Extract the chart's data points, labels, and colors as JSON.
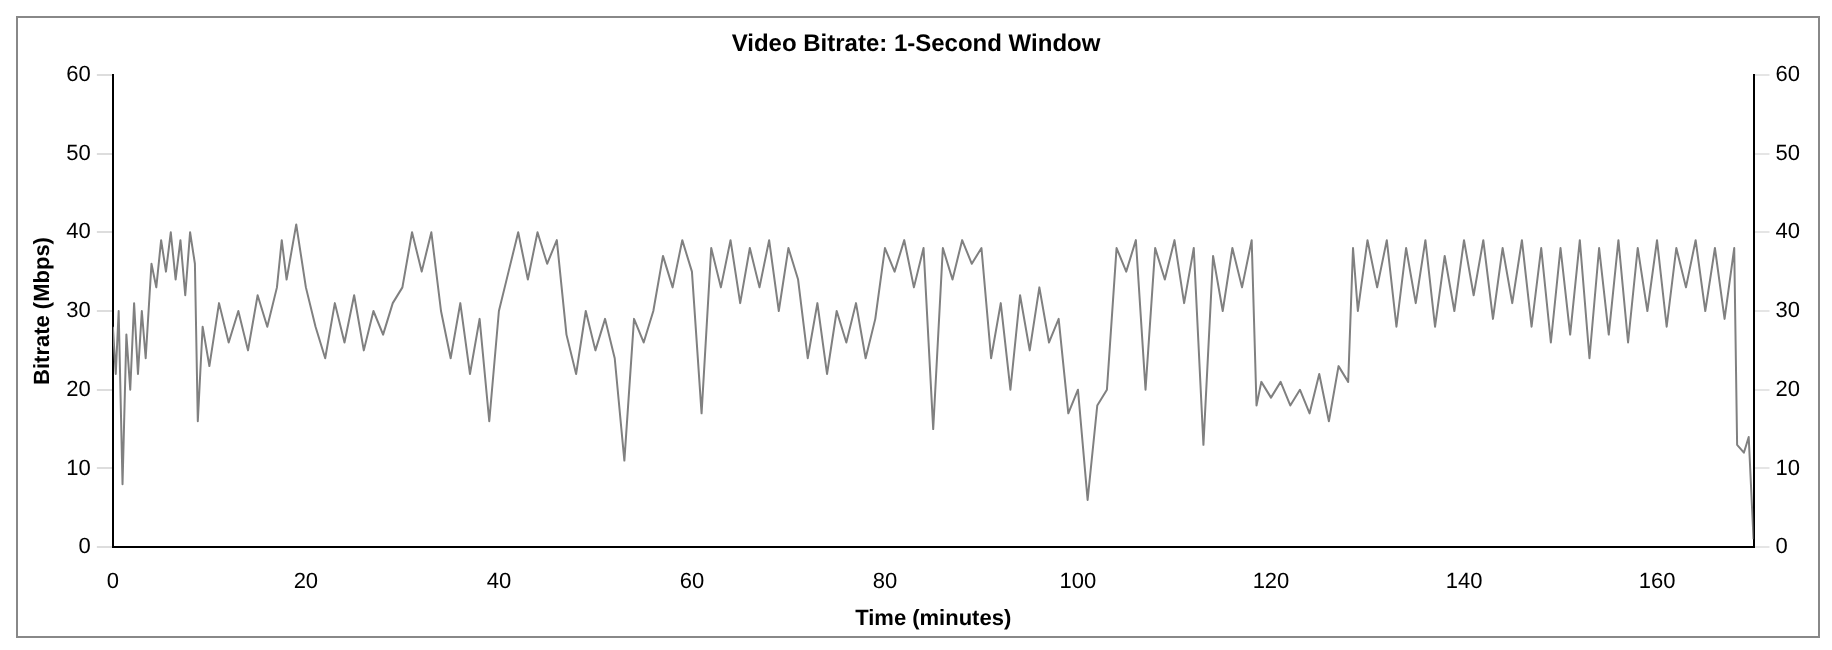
{
  "chart_data": {
    "type": "line",
    "title": "Video Bitrate: 1-Second Window",
    "xlabel": "Time (minutes)",
    "ylabel": "Bitrate (Mbps)",
    "x": [
      0,
      0.3,
      0.6,
      1,
      1.4,
      1.8,
      2.2,
      2.6,
      3,
      3.4,
      4,
      4.5,
      5,
      5.5,
      6,
      6.5,
      7,
      7.5,
      8,
      8.5,
      8.8,
      9.3,
      10,
      11,
      12,
      13,
      14,
      15,
      16,
      17,
      17.5,
      18,
      19,
      20,
      21,
      22,
      23,
      24,
      25,
      26,
      27,
      28,
      29,
      30,
      31,
      32,
      33,
      34,
      35,
      36,
      37,
      38,
      39,
      40,
      41,
      42,
      43,
      44,
      45,
      46,
      47,
      48,
      49,
      50,
      51,
      52,
      53,
      54,
      55,
      56,
      57,
      58,
      59,
      60,
      61,
      62,
      63,
      64,
      65,
      66,
      67,
      68,
      69,
      70,
      71,
      72,
      73,
      74,
      75,
      76,
      77,
      78,
      79,
      80,
      81,
      82,
      83,
      84,
      85,
      86,
      87,
      88,
      89,
      90,
      91,
      92,
      93,
      94,
      95,
      96,
      97,
      98,
      99,
      100,
      101,
      102,
      103,
      104,
      105,
      106,
      107,
      108,
      109,
      110,
      111,
      112,
      113,
      114,
      115,
      116,
      117,
      118,
      118.5,
      119,
      120,
      121,
      122,
      123,
      124,
      125,
      126,
      127,
      128,
      128.5,
      129,
      130,
      131,
      132,
      133,
      134,
      135,
      136,
      137,
      138,
      139,
      140,
      141,
      142,
      143,
      144,
      145,
      146,
      147,
      148,
      149,
      150,
      151,
      152,
      153,
      154,
      155,
      156,
      157,
      158,
      159,
      160,
      161,
      162,
      163,
      164,
      165,
      166,
      167,
      168,
      168.3,
      169,
      169.5,
      170
    ],
    "series": [
      {
        "color": "#808080",
        "values": [
          28,
          22,
          30,
          8,
          27,
          20,
          31,
          22,
          30,
          24,
          36,
          33,
          39,
          35,
          40,
          34,
          39,
          32,
          40,
          36,
          16,
          28,
          23,
          31,
          26,
          30,
          25,
          32,
          28,
          33,
          39,
          34,
          41,
          33,
          28,
          24,
          31,
          26,
          32,
          25,
          30,
          27,
          31,
          33,
          40,
          35,
          40,
          30,
          24,
          31,
          22,
          29,
          16,
          30,
          35,
          40,
          34,
          40,
          36,
          39,
          27,
          22,
          30,
          25,
          29,
          24,
          11,
          29,
          26,
          30,
          37,
          33,
          39,
          35,
          17,
          38,
          33,
          39,
          31,
          38,
          33,
          39,
          30,
          38,
          34,
          24,
          31,
          22,
          30,
          26,
          31,
          24,
          29,
          38,
          35,
          39,
          33,
          38,
          15,
          38,
          34,
          39,
          36,
          38,
          24,
          31,
          20,
          32,
          25,
          33,
          26,
          29,
          17,
          20,
          6,
          18,
          20,
          38,
          35,
          39,
          20,
          38,
          34,
          39,
          31,
          38,
          13,
          37,
          30,
          38,
          33,
          39,
          18,
          21,
          19,
          21,
          18,
          20,
          17,
          22,
          16,
          23,
          21,
          38,
          30,
          39,
          33,
          39,
          28,
          38,
          31,
          39,
          28,
          37,
          30,
          39,
          32,
          39,
          29,
          38,
          31,
          39,
          28,
          38,
          26,
          38,
          27,
          39,
          24,
          38,
          27,
          39,
          26,
          38,
          30,
          39,
          28,
          38,
          33,
          39,
          30,
          38,
          29,
          38,
          13,
          12,
          14,
          1
        ]
      }
    ],
    "xlim": [
      0,
      170
    ],
    "xticks": [
      0,
      20,
      40,
      60,
      80,
      100,
      120,
      140,
      160
    ],
    "ylim": [
      0,
      60
    ],
    "yticks": [
      0,
      10,
      20,
      30,
      40,
      50,
      60
    ],
    "y2lim": [
      0,
      60
    ],
    "y2ticks": [
      0,
      10,
      20,
      30,
      40,
      50,
      60
    ],
    "grid": false
  }
}
